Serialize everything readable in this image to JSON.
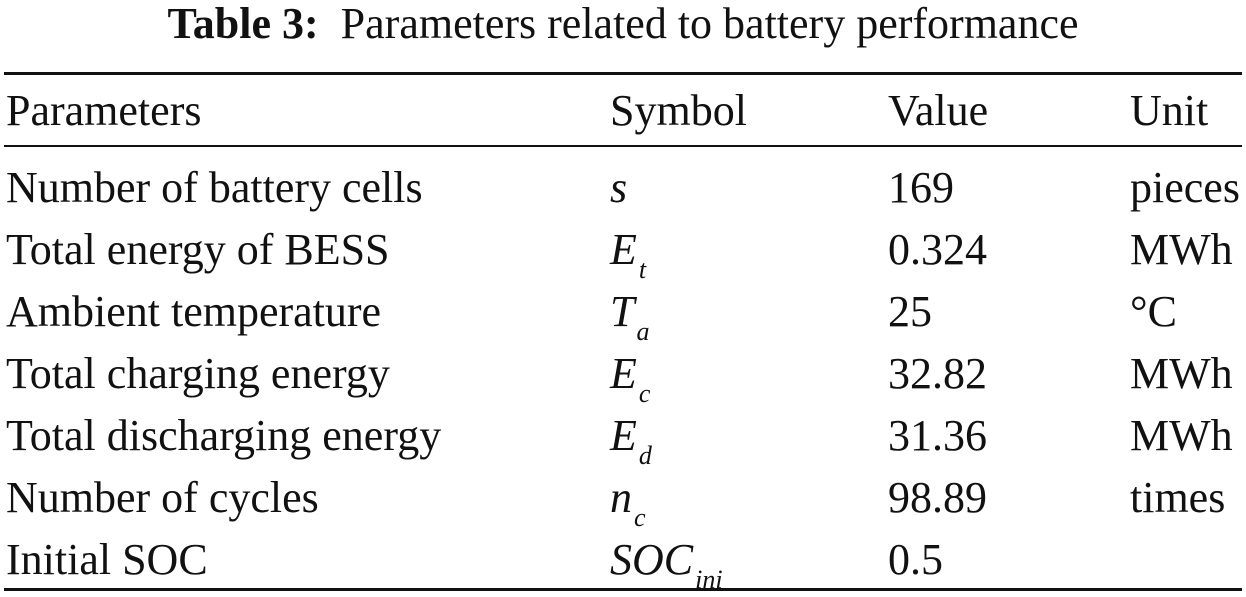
{
  "caption": {
    "label": "Table 3:",
    "text": "Parameters related to battery performance"
  },
  "table": {
    "headers": [
      "Parameters",
      "Symbol",
      "Value",
      "Unit"
    ],
    "rows": [
      {
        "parameter": "Number of battery cells",
        "symbol_base": "s",
        "symbol_sub": "",
        "value": "169",
        "unit": "pieces"
      },
      {
        "parameter": "Total energy of BESS",
        "symbol_base": "E",
        "symbol_sub": "t",
        "value": "0.324",
        "unit": "MWh"
      },
      {
        "parameter": "Ambient temperature",
        "symbol_base": "T",
        "symbol_sub": "a",
        "value": "25",
        "unit": "°C"
      },
      {
        "parameter": "Total charging energy",
        "symbol_base": "E",
        "symbol_sub": "c",
        "value": "32.82",
        "unit": "MWh"
      },
      {
        "parameter": "Total discharging energy",
        "symbol_base": "E",
        "symbol_sub": "d",
        "value": "31.36",
        "unit": "MWh"
      },
      {
        "parameter": "Number of cycles",
        "symbol_base": "n",
        "symbol_sub": "c",
        "value": "98.89",
        "unit": "times"
      },
      {
        "parameter": "Initial SOC",
        "symbol_base": "SOC",
        "symbol_sub": "ini",
        "value": "0.5",
        "unit": ""
      }
    ]
  }
}
